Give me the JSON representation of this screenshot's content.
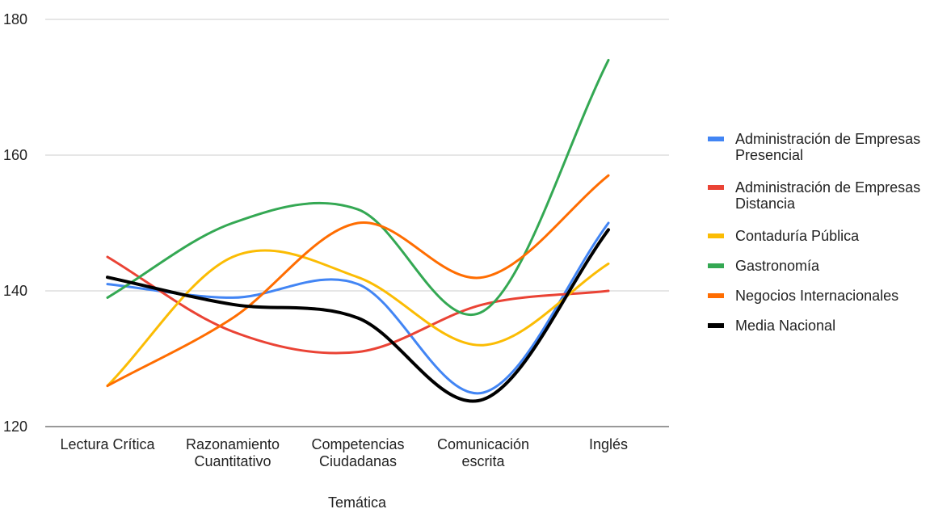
{
  "chart_data": {
    "type": "line",
    "title": "",
    "xlabel": "Temática",
    "ylabel": "",
    "ylim": [
      120,
      180
    ],
    "yticks": [
      120,
      140,
      160,
      180
    ],
    "grid": true,
    "legend_position": "right",
    "smooth": true,
    "categories": [
      [
        "Lectura Crítica"
      ],
      [
        "Razonamiento",
        "Cuantitativo"
      ],
      [
        "Competencias",
        "Ciudadanas"
      ],
      [
        "Comunicación",
        "escrita"
      ],
      [
        "Inglés"
      ]
    ],
    "series": [
      {
        "name": [
          "Administración de Empresas",
          "Presencial"
        ],
        "color": "#4285F4",
        "values": [
          141,
          139,
          141,
          125,
          150
        ]
      },
      {
        "name": [
          "Administración de Empresas",
          "Distancia"
        ],
        "color": "#EA4335",
        "values": [
          145,
          134,
          131,
          138,
          140
        ]
      },
      {
        "name": [
          "Contaduría Pública"
        ],
        "color": "#FBBC04",
        "values": [
          126,
          145,
          142,
          132,
          144
        ]
      },
      {
        "name": [
          "Gastronomía"
        ],
        "color": "#34A853",
        "values": [
          139,
          150,
          152,
          137,
          174
        ]
      },
      {
        "name": [
          "Negocios Internacionales"
        ],
        "color": "#FF6D01",
        "values": [
          126,
          136,
          150,
          142,
          157
        ]
      },
      {
        "name": [
          "Media Nacional"
        ],
        "color": "#000000",
        "values": [
          142,
          138,
          136,
          124,
          149
        ]
      }
    ]
  }
}
